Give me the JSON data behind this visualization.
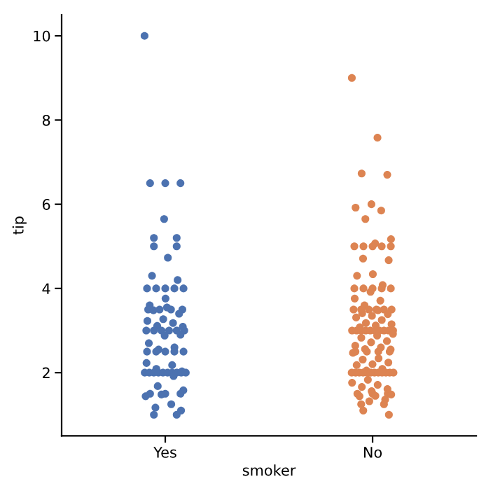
{
  "chart_data": {
    "type": "scatter",
    "categories": [
      "Yes",
      "No"
    ],
    "xlabel": "smoker",
    "ylabel": "tip",
    "ylim": [
      0.5,
      10.5
    ],
    "yticks": [
      2,
      4,
      6,
      8,
      10
    ],
    "grid": false,
    "marker": "circle",
    "series": [
      {
        "color": "#4c72b0",
        "x": [
          "Yes",
          "Yes",
          "Yes",
          "Yes",
          "Yes",
          "Yes",
          "Yes",
          "Yes",
          "Yes",
          "Yes",
          "Yes",
          "Yes",
          "Yes",
          "Yes",
          "Yes",
          "Yes",
          "Yes",
          "Yes",
          "Yes",
          "Yes",
          "Yes",
          "Yes",
          "Yes",
          "Yes",
          "Yes",
          "Yes",
          "Yes",
          "Yes",
          "Yes",
          "Yes",
          "Yes",
          "Yes",
          "Yes",
          "Yes",
          "Yes",
          "Yes",
          "Yes",
          "Yes",
          "Yes",
          "Yes",
          "Yes",
          "Yes",
          "Yes",
          "Yes",
          "Yes",
          "Yes",
          "Yes",
          "Yes",
          "Yes",
          "Yes",
          "Yes",
          "Yes",
          "Yes",
          "Yes",
          "Yes",
          "Yes",
          "Yes",
          "Yes",
          "Yes",
          "Yes",
          "Yes",
          "Yes",
          "Yes",
          "Yes",
          "Yes",
          "Yes",
          "Yes",
          "Yes",
          "Yes",
          "Yes",
          "Yes",
          "Yes",
          "Yes",
          "Yes"
        ],
        "values": [
          10,
          6.5,
          6.5,
          6.5,
          5.65,
          5.2,
          5.2,
          5.0,
          5.0,
          4.73,
          4.3,
          4.2,
          4.0,
          4.0,
          4.0,
          4.0,
          4.0,
          3.76,
          3.6,
          3.5,
          3.5,
          3.5,
          3.5,
          3.48,
          3.4,
          3.27,
          3.23,
          3.18,
          3.11,
          3.09,
          3.55,
          3.0,
          3.0,
          3.0,
          3.0,
          3.0,
          3.0,
          2.9,
          2.88,
          2.7,
          2.6,
          2.55,
          2.5,
          2.5,
          2.5,
          2.5,
          2.5,
          2.23,
          2.18,
          2.09,
          2.03,
          2.0,
          2.0,
          2.0,
          2.0,
          2.0,
          2.0,
          2.0,
          2.0,
          2.0,
          2.0,
          1.92,
          1.68,
          1.58,
          1.5,
          1.5,
          1.5,
          1.48,
          1.44,
          1.25,
          1.17,
          1.1,
          1.0,
          1.0
        ]
      },
      {
        "color": "#dd8452",
        "x": [
          "No",
          "No",
          "No",
          "No",
          "No",
          "No",
          "No",
          "No",
          "No",
          "No",
          "No",
          "No",
          "No",
          "No",
          "No",
          "No",
          "No",
          "No",
          "No",
          "No",
          "No",
          "No",
          "No",
          "No",
          "No",
          "No",
          "No",
          "No",
          "No",
          "No",
          "No",
          "No",
          "No",
          "No",
          "No",
          "No",
          "No",
          "No",
          "No",
          "No",
          "No",
          "No",
          "No",
          "No",
          "No",
          "No",
          "No",
          "No",
          "No",
          "No",
          "No",
          "No",
          "No",
          "No",
          "No",
          "No",
          "No",
          "No",
          "No",
          "No",
          "No",
          "No",
          "No",
          "No",
          "No",
          "No",
          "No",
          "No",
          "No",
          "No",
          "No",
          "No",
          "No",
          "No",
          "No",
          "No",
          "No",
          "No",
          "No",
          "No",
          "No",
          "No",
          "No",
          "No",
          "No",
          "No",
          "No",
          "No",
          "No",
          "No",
          "No",
          "No",
          "No",
          "No",
          "No",
          "No",
          "No",
          "No",
          "No",
          "No",
          "No",
          "No",
          "No",
          "No",
          "No",
          "No"
        ],
        "values": [
          9.0,
          7.58,
          6.73,
          6.7,
          6.0,
          5.92,
          5.85,
          5.65,
          5.17,
          5.07,
          5.0,
          5.0,
          5.0,
          5.0,
          5.0,
          4.71,
          4.67,
          4.34,
          4.3,
          4.08,
          4.0,
          4.0,
          4.0,
          4.0,
          4.0,
          3.92,
          3.76,
          3.71,
          3.6,
          3.5,
          3.5,
          3.5,
          3.5,
          3.5,
          3.5,
          3.48,
          3.41,
          3.39,
          3.35,
          3.31,
          3.25,
          3.18,
          3.15,
          3.12,
          3.08,
          3.0,
          3.0,
          3.0,
          3.0,
          3.0,
          3.0,
          3.0,
          3.0,
          3.0,
          3.0,
          2.92,
          2.88,
          2.83,
          2.75,
          2.72,
          2.64,
          2.6,
          2.56,
          2.55,
          2.5,
          2.5,
          2.5,
          2.5,
          2.47,
          2.34,
          2.31,
          2.24,
          2.2,
          2.18,
          2.09,
          2.05,
          2.0,
          2.0,
          2.0,
          2.0,
          2.0,
          2.0,
          2.0,
          2.0,
          2.0,
          2.0,
          2.0,
          2.0,
          1.83,
          1.76,
          1.71,
          1.66,
          1.61,
          1.56,
          1.5,
          1.5,
          1.5,
          1.48,
          1.45,
          1.44,
          1.36,
          1.32,
          1.25,
          1.25,
          1.1,
          1.0
        ]
      }
    ]
  }
}
